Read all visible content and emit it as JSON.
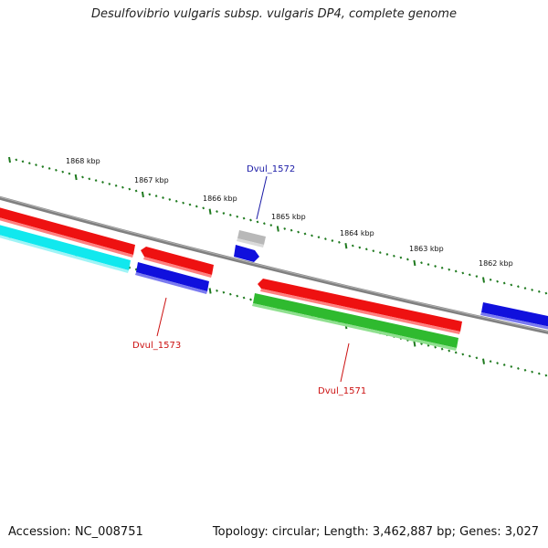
{
  "title": "Desulfovibrio vulgaris subsp. vulgaris DP4, complete genome",
  "footer": {
    "accession": "Accession: NC_008751",
    "summary": "Topology: circular; Length: 3,462,887 bp; Genes: 3,027"
  },
  "scale_labels": [
    "1868 kbp",
    "1867 kbp",
    "1866 kbp",
    "1865 kbp",
    "1864 kbp",
    "1863 kbp",
    "1862 kbp"
  ],
  "gene_labels": {
    "top": "Dvul_1572",
    "bottom_left": "Dvul_1573",
    "bottom_right": "Dvul_1571"
  },
  "colors": {
    "backbone": "#808080",
    "tick": "#1f7a1f",
    "red": "#ee1111",
    "blue": "#1010dd",
    "cyan": "#11e8ee",
    "green": "#2fba2f",
    "gray": "#b8b8b8",
    "label_blue": "#1a1aa6",
    "label_red": "#cc1111"
  }
}
